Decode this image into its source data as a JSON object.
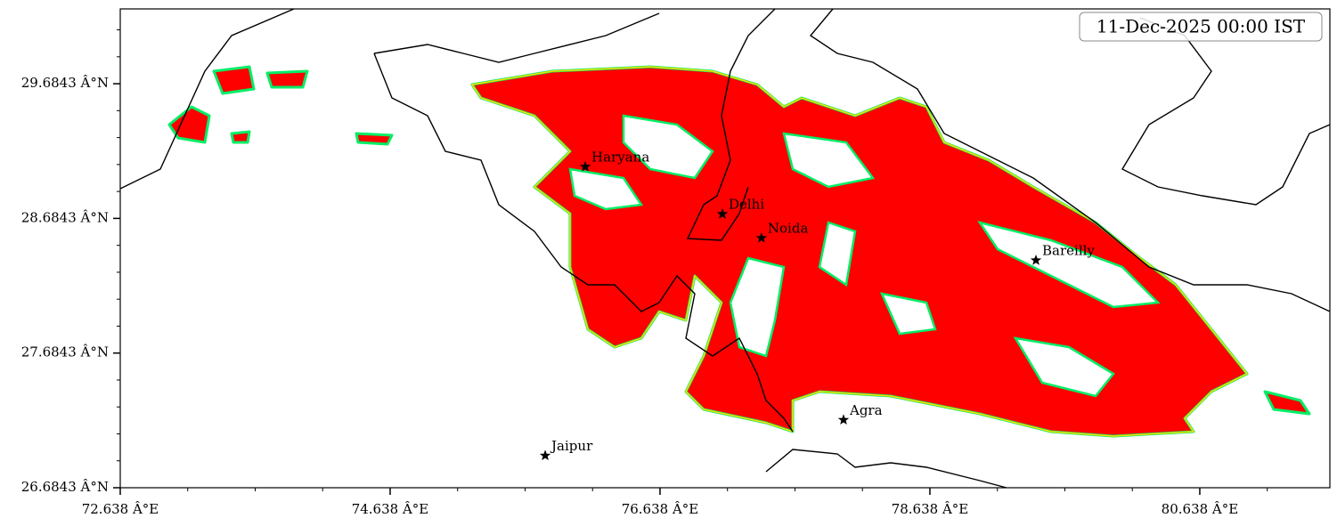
{
  "chart_data": {
    "type": "map",
    "timestamp": "11-Dec-2025 00:00 IST",
    "xlim": [
      72.638,
      81.602
    ],
    "ylim": [
      26.6843,
      30.24
    ],
    "xticks": [
      {
        "value": 72.638,
        "label": "72.638 Â°E"
      },
      {
        "value": 74.638,
        "label": "74.638 Â°E"
      },
      {
        "value": 76.638,
        "label": "76.638 Â°E"
      },
      {
        "value": 78.638,
        "label": "78.638 Â°E"
      },
      {
        "value": 80.638,
        "label": "80.638 Â°E"
      }
    ],
    "yticks": [
      {
        "value": 26.6843,
        "label": "26.6843 Â°N"
      },
      {
        "value": 27.6843,
        "label": "27.6843 Â°N"
      },
      {
        "value": 28.6843,
        "label": "28.6843 Â°N"
      },
      {
        "value": 29.6843,
        "label": "29.6843 Â°N"
      }
    ],
    "xminorticks": [
      73.138,
      73.638,
      74.138,
      75.138,
      75.638,
      76.138,
      77.138,
      77.638,
      78.138,
      79.138,
      79.638,
      80.138,
      81.138
    ],
    "yminorticks": [
      26.8843,
      27.0843,
      27.2843,
      27.4843,
      27.8843,
      28.0843,
      28.2843,
      28.4843,
      28.8843,
      29.0843,
      29.2843,
      29.4843,
      29.8843,
      30.0843
    ],
    "cities": [
      {
        "name": "Haryana",
        "lon": 76.084,
        "lat": 29.068
      },
      {
        "name": "Delhi",
        "lon": 77.1,
        "lat": 28.717
      },
      {
        "name": "Noida",
        "lon": 77.39,
        "lat": 28.539
      },
      {
        "name": "Bareilly",
        "lon": 79.424,
        "lat": 28.373
      },
      {
        "name": "Agra",
        "lon": 77.998,
        "lat": 27.188
      },
      {
        "name": "Jaipur",
        "lon": 75.787,
        "lat": 26.923
      }
    ],
    "marker_color": "#000000"
  }
}
